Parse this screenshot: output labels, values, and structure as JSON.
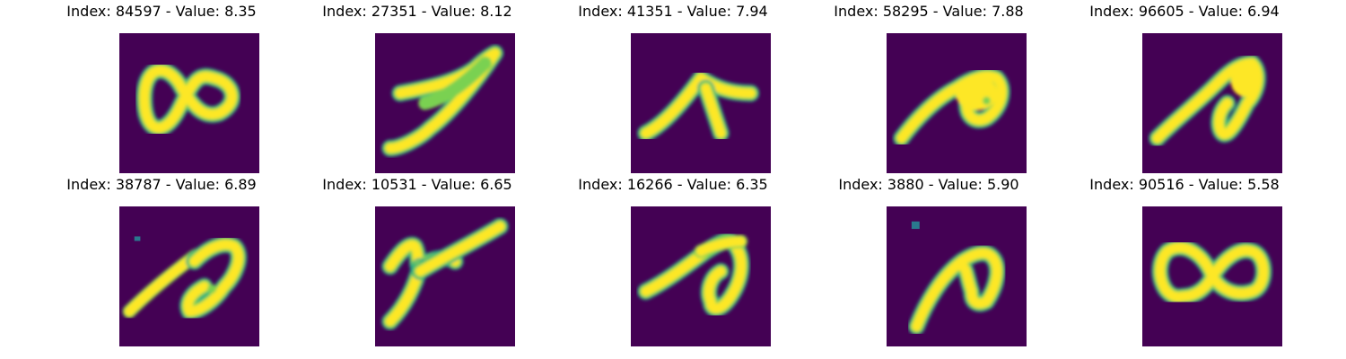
{
  "colors": {
    "background": "#440154",
    "stroke_core": "#fde725",
    "stroke_mid": "#7ad151",
    "stroke_edge": "#22a884",
    "stroke_faint": "#2a788e"
  },
  "panels": [
    {
      "title": "Index: 84597 - Value: 8.35",
      "glyph": "infinity-loop-small-right"
    },
    {
      "title": "Index: 27351 - Value: 8.12",
      "glyph": "sevenlike-swoosh"
    },
    {
      "title": "Index: 41351 - Value: 7.94",
      "glyph": "arrow-up-right"
    },
    {
      "title": "Index: 58295 - Value: 7.88",
      "glyph": "filled-blob-with-tail"
    },
    {
      "title": "Index: 96605 - Value: 6.94",
      "glyph": "looped-stroke-with-blob"
    },
    {
      "title": "Index: 38787 - Value: 6.89",
      "glyph": "looped-stroke-with-dot"
    },
    {
      "title": "Index: 10531 - Value: 6.65",
      "glyph": "y-like-cross"
    },
    {
      "title": "Index: 16266 - Value: 6.35",
      "glyph": "looped-stroke"
    },
    {
      "title": "Index: 3880 - Value: 5.90",
      "glyph": "hooked-stroke-with-dot"
    },
    {
      "title": "Index: 90516 - Value: 5.58",
      "glyph": "infinity-loop"
    }
  ]
}
